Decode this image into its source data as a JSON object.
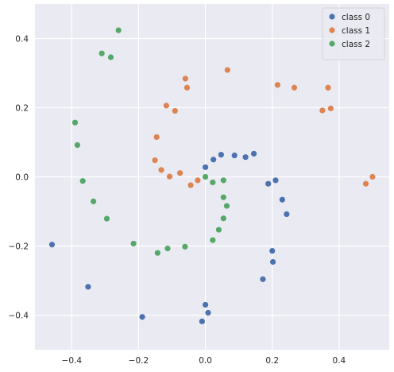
{
  "chart_data": {
    "type": "scatter",
    "title": "",
    "xlabel": "",
    "ylabel": "",
    "xlim": [
      -0.51,
      0.55
    ],
    "ylim": [
      -0.5,
      0.5
    ],
    "xticks": [
      -0.4,
      -0.2,
      0.0,
      0.2,
      0.4
    ],
    "yticks": [
      -0.4,
      -0.2,
      0.0,
      0.2,
      0.4
    ],
    "xtick_labels": [
      "−0.4",
      "−0.2",
      "0.0",
      "0.2",
      "0.4"
    ],
    "ytick_labels": [
      "−0.4",
      "−0.2",
      "0.0",
      "0.2",
      "0.4"
    ],
    "grid": true,
    "background": "#eaeaf2",
    "legend_position": "top-right",
    "series": [
      {
        "name": "class 0",
        "color": "#4c72b0",
        "points": [
          [
            -0.459,
            -0.196
          ],
          [
            -0.351,
            -0.318
          ],
          [
            -0.189,
            -0.405
          ],
          [
            -0.01,
            -0.418
          ],
          [
            0.0,
            -0.37
          ],
          [
            0.008,
            -0.393
          ],
          [
            0.0,
            0.028
          ],
          [
            0.024,
            0.05
          ],
          [
            0.047,
            0.064
          ],
          [
            0.087,
            0.062
          ],
          [
            0.12,
            0.057
          ],
          [
            0.145,
            0.067
          ],
          [
            0.188,
            -0.02
          ],
          [
            0.21,
            -0.01
          ],
          [
            0.23,
            -0.066
          ],
          [
            0.243,
            -0.108
          ],
          [
            0.2,
            -0.214
          ],
          [
            0.202,
            -0.246
          ],
          [
            0.172,
            -0.296
          ]
        ]
      },
      {
        "name": "class 1",
        "color": "#dd8452",
        "points": [
          [
            -0.06,
            0.284
          ],
          [
            -0.055,
            0.258
          ],
          [
            0.066,
            0.309
          ],
          [
            -0.117,
            0.206
          ],
          [
            -0.091,
            0.191
          ],
          [
            -0.146,
            0.115
          ],
          [
            -0.151,
            0.048
          ],
          [
            -0.132,
            0.02
          ],
          [
            -0.107,
            0.001
          ],
          [
            -0.076,
            0.011
          ],
          [
            -0.044,
            -0.024
          ],
          [
            -0.023,
            -0.01
          ],
          [
            0.216,
            0.266
          ],
          [
            0.266,
            0.258
          ],
          [
            0.367,
            0.258
          ],
          [
            0.35,
            0.192
          ],
          [
            0.375,
            0.198
          ],
          [
            0.48,
            -0.02
          ],
          [
            0.5,
            0.0
          ]
        ]
      },
      {
        "name": "class 2",
        "color": "#55a868",
        "points": [
          [
            -0.26,
            0.424
          ],
          [
            -0.31,
            0.357
          ],
          [
            -0.283,
            0.346
          ],
          [
            -0.39,
            0.157
          ],
          [
            -0.383,
            0.092
          ],
          [
            -0.367,
            -0.012
          ],
          [
            -0.335,
            -0.071
          ],
          [
            -0.295,
            -0.121
          ],
          [
            -0.215,
            -0.193
          ],
          [
            -0.143,
            -0.22
          ],
          [
            -0.113,
            -0.207
          ],
          [
            -0.061,
            -0.202
          ],
          [
            0.0,
            0.0
          ],
          [
            0.022,
            -0.016
          ],
          [
            0.054,
            -0.01
          ],
          [
            0.054,
            -0.059
          ],
          [
            0.054,
            -0.12
          ],
          [
            0.064,
            -0.084
          ],
          [
            0.04,
            -0.153
          ],
          [
            0.022,
            -0.183
          ]
        ]
      }
    ]
  }
}
